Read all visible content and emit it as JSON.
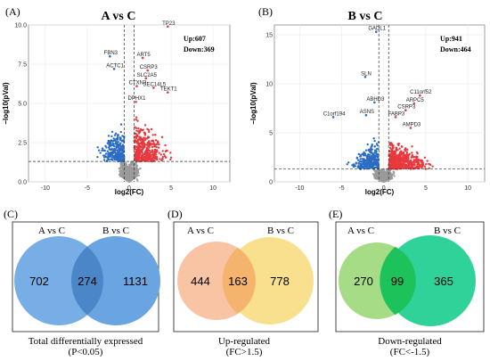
{
  "chart_data": [
    {
      "type": "scatter",
      "panel_label": "(A)",
      "title": "A vs C",
      "xlabel": "log2(FC)",
      "ylabel": "−log10(pVal)",
      "xlim": [
        -12,
        12
      ],
      "ylim": [
        0,
        10
      ],
      "x_ticks": [
        "-10",
        "-5",
        "0",
        "5",
        "10"
      ],
      "y_ticks": [
        "0.0",
        "2.5",
        "5.0",
        "7.5",
        "10.0"
      ],
      "threshold_x": [
        -0.585,
        0.585
      ],
      "threshold_y": 1.3,
      "up_label": "Up:607",
      "down_label": "Down:369",
      "labels": [
        {
          "text": "TP23",
          "x": 4.6,
          "y": 9.9
        },
        {
          "text": "FBN3",
          "x": -2.3,
          "y": 8.0
        },
        {
          "text": "ART5",
          "x": 1.6,
          "y": 7.9
        },
        {
          "text": "ACTC1",
          "x": -1.8,
          "y": 7.2
        },
        {
          "text": "CSRP3",
          "x": 2.2,
          "y": 7.1
        },
        {
          "text": "SLC2A5",
          "x": 2.0,
          "y": 6.6
        },
        {
          "text": "CTXN3",
          "x": 0.9,
          "y": 6.1
        },
        {
          "text": "SEC14L5",
          "x": 2.9,
          "y": 6.0
        },
        {
          "text": "TEKT1",
          "x": 4.6,
          "y": 5.7
        },
        {
          "text": "DPHX1",
          "x": 0.8,
          "y": 5.1
        }
      ]
    },
    {
      "type": "scatter",
      "panel_label": "(B)",
      "title": "B vs C",
      "xlabel": "log2(FC)",
      "ylabel": "−log10(pVal)",
      "xlim": [
        -13,
        12
      ],
      "ylim": [
        0,
        16
      ],
      "x_ticks": [
        "-10",
        "-5",
        "0",
        "5",
        "10"
      ],
      "y_ticks": [
        "0",
        "5",
        "10",
        "15"
      ],
      "threshold_x": [
        -0.585,
        0.585
      ],
      "threshold_y": 1.3,
      "up_label": "Up:941",
      "down_label": "Down:464",
      "labels": [
        {
          "text": "GADL1",
          "x": -0.9,
          "y": 15.3
        },
        {
          "text": "SLN",
          "x": -2.2,
          "y": 10.7
        },
        {
          "text": "C11orf52",
          "x": 4.3,
          "y": 8.8
        },
        {
          "text": "ARPC5",
          "x": 3.6,
          "y": 8.0
        },
        {
          "text": "ABHD3",
          "x": -1.1,
          "y": 8.1
        },
        {
          "text": "CSRP3",
          "x": 2.6,
          "y": 7.3
        },
        {
          "text": "FABP3",
          "x": 1.4,
          "y": 6.6
        },
        {
          "text": "ASNS",
          "x": -2.1,
          "y": 6.8
        },
        {
          "text": "C1orf194",
          "x": -6.0,
          "y": 6.6
        },
        {
          "text": "AMPD3",
          "x": 3.2,
          "y": 5.5
        }
      ]
    },
    {
      "type": "venn",
      "panel_label": "(C)",
      "sets": [
        "A vs C",
        "B vs C"
      ],
      "only_left": 702,
      "overlap": 274,
      "only_right": 1131,
      "caption": "Total differentially expressed",
      "subcaption": "(P<0.05)"
    },
    {
      "type": "venn",
      "panel_label": "(D)",
      "sets": [
        "A vs C",
        "B vs C"
      ],
      "only_left": 444,
      "overlap": 163,
      "only_right": 778,
      "caption": "Up-regulated",
      "subcaption": "(FC>1.5)"
    },
    {
      "type": "venn",
      "panel_label": "(E)",
      "sets": [
        "A vs C",
        "B vs C"
      ],
      "only_left": 270,
      "overlap": 99,
      "only_right": 365,
      "caption": "Down-regulated",
      "subcaption": "(FC<-1.5)"
    }
  ],
  "colors": {
    "up": "#e8393e",
    "down": "#2b6cc4",
    "ns": "#9a9a9a",
    "venn_c_left": "#77aee6",
    "venn_c_right": "#6aa5e2",
    "venn_c_mid": "#4a86c8",
    "venn_d_left": "#f8c4a4",
    "venn_d_right": "#f9e08e",
    "venn_d_mid": "#f5b46e",
    "venn_e_left": "#a6dc86",
    "venn_e_right": "#2fd39a",
    "venn_e_mid": "#1ec25a"
  }
}
